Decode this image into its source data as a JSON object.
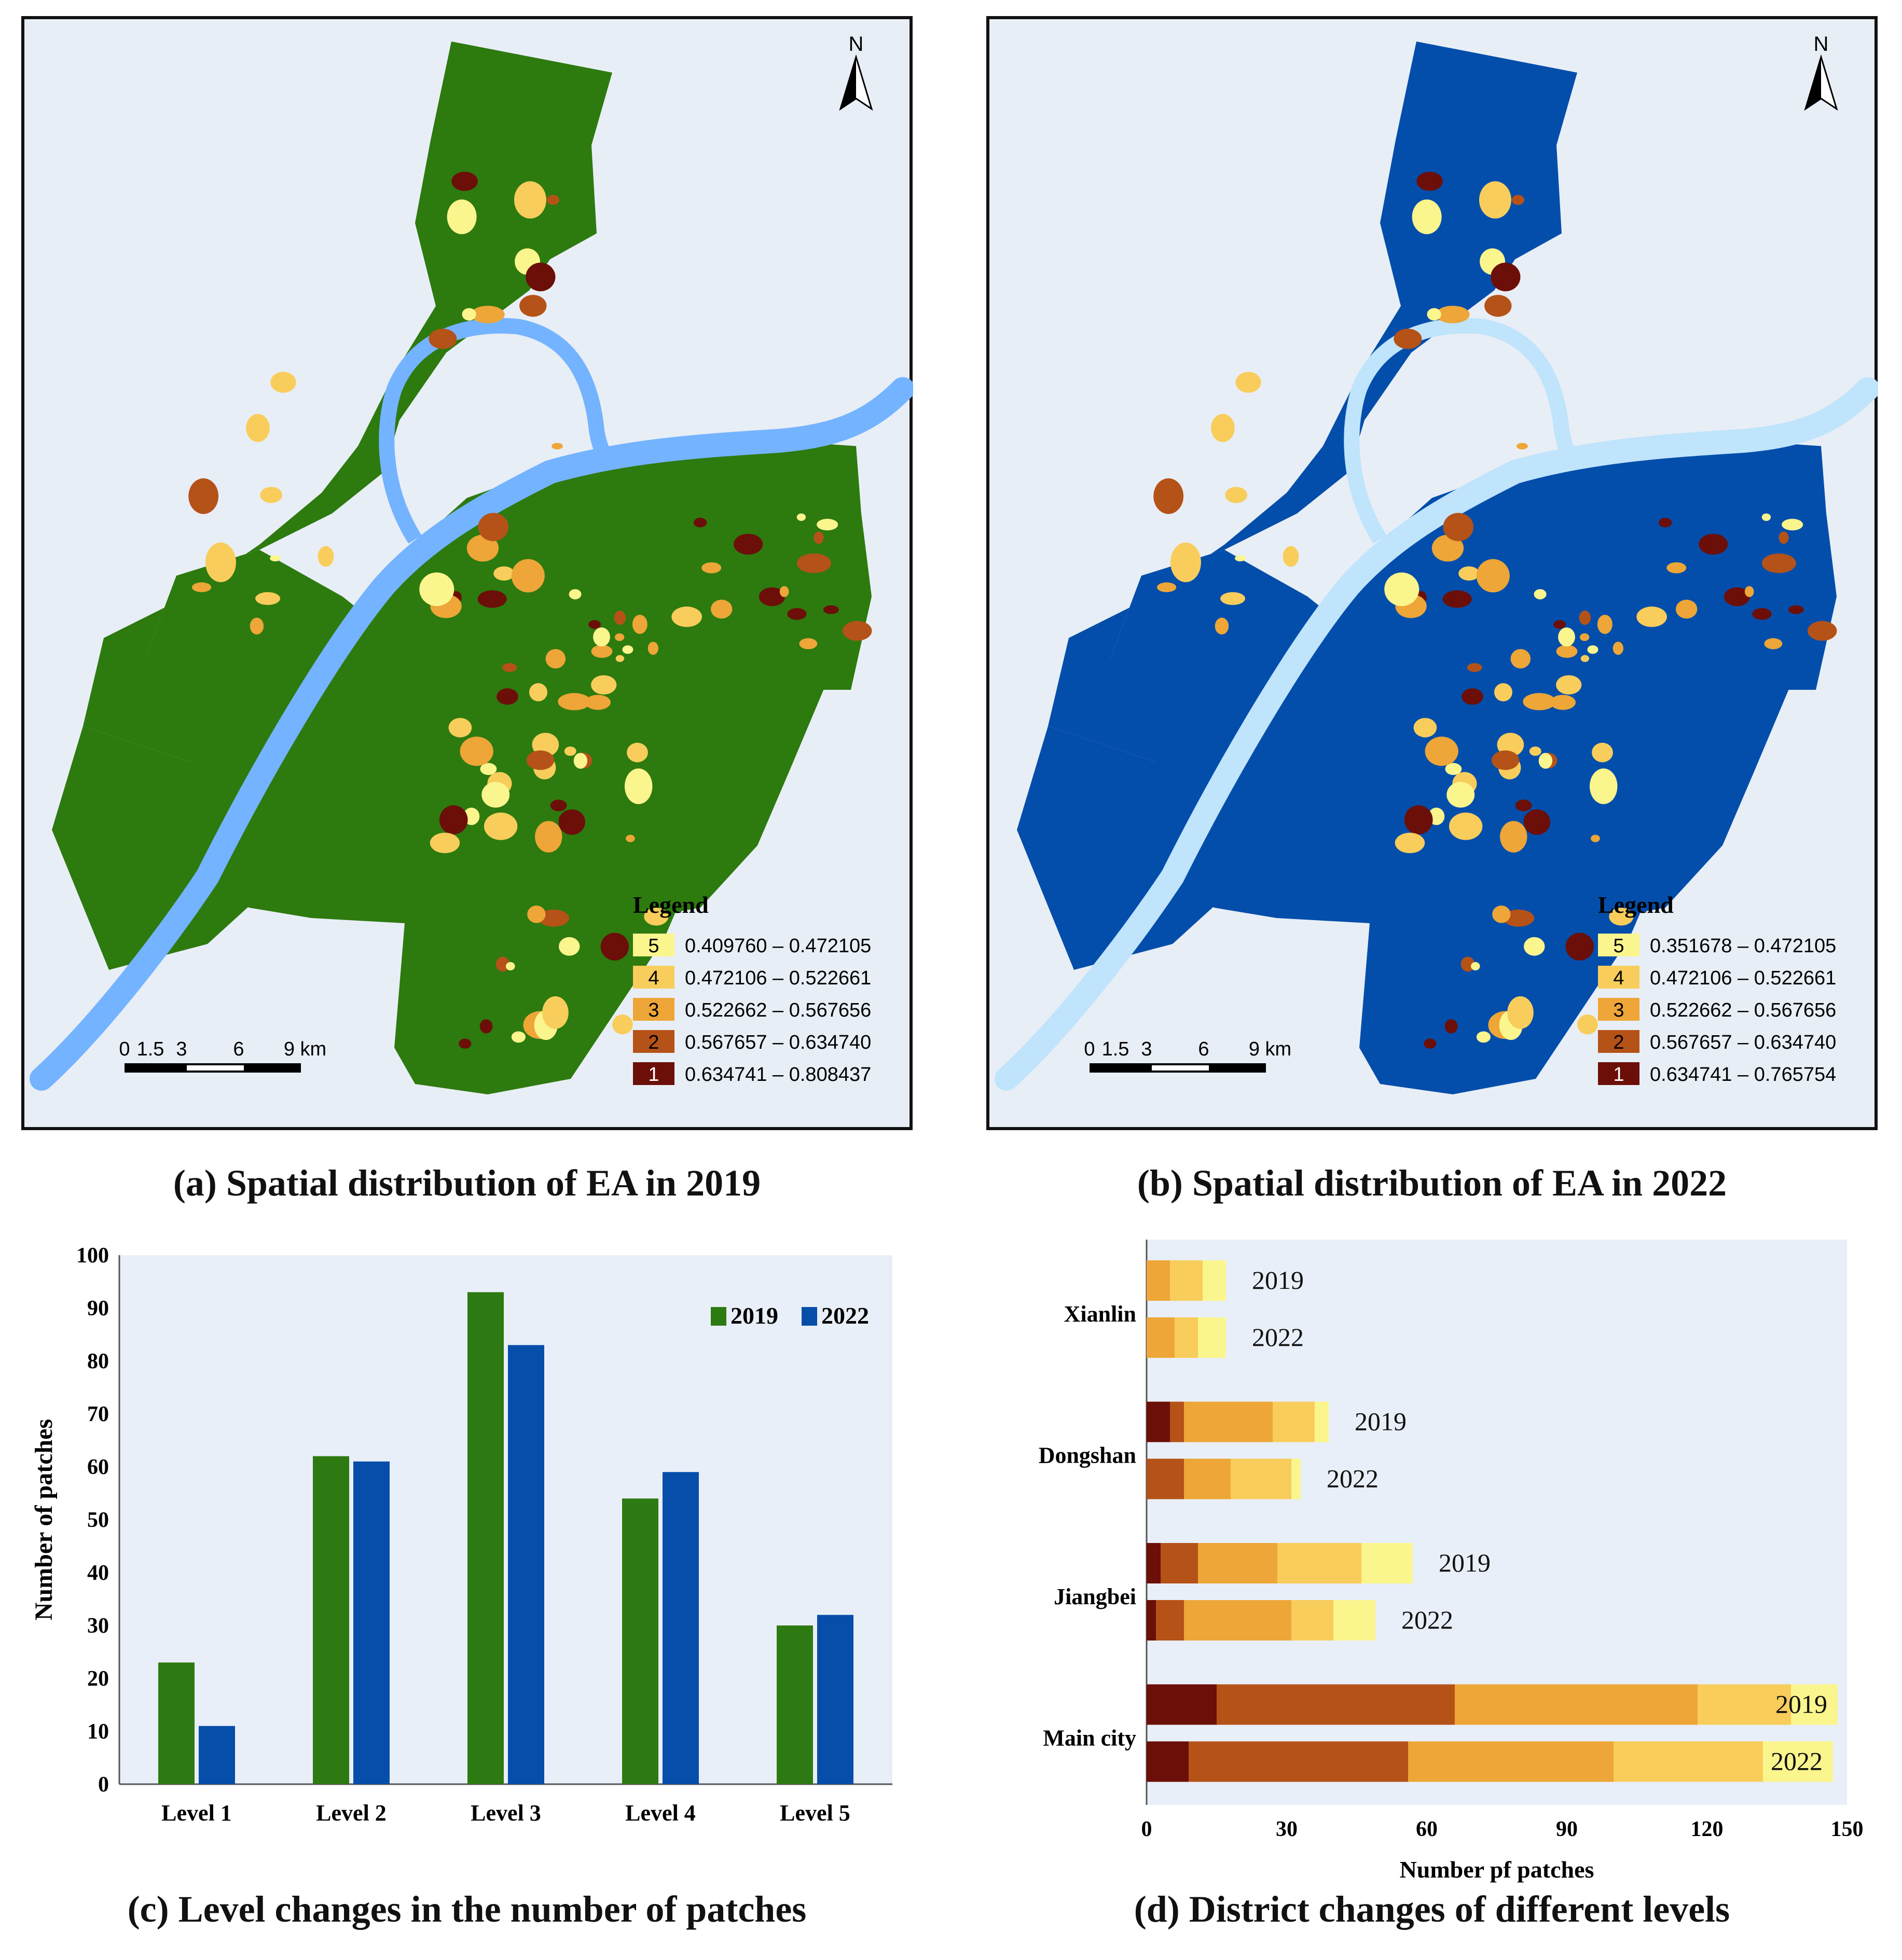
{
  "colors": {
    "land_2019": "#2d7a0f",
    "land_2022": "#044eab",
    "water_2019": "#74b3ff",
    "water_2022": "#bfe4fb",
    "map_bg": "#e8eef6",
    "level_1": "#6b0f08",
    "level_2": "#b55218",
    "level_3": "#eda637",
    "level_4": "#f8cd5b",
    "level_5": "#fbf58d",
    "chart_bg": "#e9eff8",
    "bar_2019": "#2e7a12",
    "bar_2022": "#064eaa"
  },
  "map_a": {
    "north_label": "N",
    "legend_title": "Legend",
    "legend": [
      {
        "code": "5",
        "range": "0.409760 – 0.472105",
        "color_key": "level_5"
      },
      {
        "code": "4",
        "range": "0.472106 – 0.522661",
        "color_key": "level_4"
      },
      {
        "code": "3",
        "range": "0.522662 – 0.567656",
        "color_key": "level_3"
      },
      {
        "code": "2",
        "range": "0.567657 – 0.634740",
        "color_key": "level_2"
      },
      {
        "code": "1",
        "range": "0.634741 – 0.808437",
        "color_key": "level_1"
      }
    ],
    "scale_labels": [
      "0",
      "1.5",
      "3",
      "6",
      "9 km"
    ],
    "caption": "(a) Spatial distribution of EA in 2019"
  },
  "map_b": {
    "north_label": "N",
    "legend_title": "Legend",
    "legend": [
      {
        "code": "5",
        "range": "0.351678 – 0.472105",
        "color_key": "level_5"
      },
      {
        "code": "4",
        "range": "0.472106 – 0.522661",
        "color_key": "level_4"
      },
      {
        "code": "3",
        "range": "0.522662 – 0.567656",
        "color_key": "level_3"
      },
      {
        "code": "2",
        "range": "0.567657 – 0.634740",
        "color_key": "level_2"
      },
      {
        "code": "1",
        "range": "0.634741 – 0.765754",
        "color_key": "level_1"
      }
    ],
    "scale_labels": [
      "0",
      "1.5",
      "3",
      "6",
      "9 km"
    ],
    "caption": "(b) Spatial distribution of EA in 2022"
  },
  "chart_data": [
    {
      "type": "bar",
      "title": "(c) Level changes in the number of patches",
      "xlabel": "",
      "ylabel": "Number of patches",
      "categories": [
        "Level 1",
        "Level 2",
        "Level 3",
        "Level 4",
        "Level 5"
      ],
      "series": [
        {
          "name": "2019",
          "values": [
            23,
            62,
            93,
            54,
            30
          ]
        },
        {
          "name": "2022",
          "values": [
            11,
            61,
            83,
            59,
            32
          ]
        }
      ],
      "ylim": [
        0,
        100
      ],
      "yticks": [
        0,
        10,
        20,
        30,
        40,
        50,
        60,
        70,
        80,
        90,
        100
      ],
      "legend_position": "top-right",
      "grid": false
    },
    {
      "type": "bar",
      "orientation": "horizontal-stacked",
      "title": "(d) District changes of different levels",
      "xlabel": "Number pf patches",
      "ylabel": "",
      "xlim": [
        0,
        150
      ],
      "xticks": [
        0,
        30,
        60,
        90,
        120,
        150
      ],
      "stack_order": [
        "Level 1",
        "Level 2",
        "Level 3",
        "Level 4",
        "Level 5"
      ],
      "groups": [
        {
          "district": "Xianlin",
          "rows": [
            {
              "year": "2019",
              "values": [
                0,
                0,
                5,
                7,
                5
              ]
            },
            {
              "year": "2022",
              "values": [
                0,
                0,
                6,
                5,
                6
              ]
            }
          ]
        },
        {
          "district": "Dongshan",
          "rows": [
            {
              "year": "2019",
              "values": [
                5,
                3,
                19,
                9,
                3
              ]
            },
            {
              "year": "2022",
              "values": [
                0,
                8,
                10,
                13,
                2
              ]
            }
          ]
        },
        {
          "district": "Jiangbei",
          "rows": [
            {
              "year": "2019",
              "values": [
                3,
                8,
                17,
                18,
                11
              ]
            },
            {
              "year": "2022",
              "values": [
                2,
                6,
                23,
                9,
                9
              ]
            }
          ]
        },
        {
          "district": "Main  city",
          "rows": [
            {
              "year": "2019",
              "values": [
                15,
                51,
                52,
                20,
                10
              ]
            },
            {
              "year": "2022",
              "values": [
                9,
                47,
                44,
                32,
                15
              ]
            }
          ]
        }
      ],
      "grid": false
    }
  ]
}
